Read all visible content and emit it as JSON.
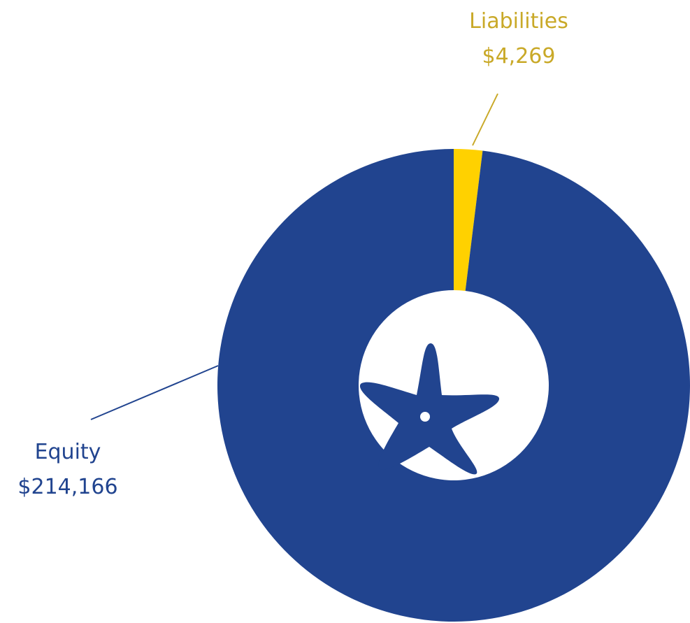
{
  "chart_data": {
    "type": "pie",
    "variant": "donut",
    "slices": [
      {
        "label": "Liabilities",
        "value": 4269,
        "value_label": "$4,269",
        "color": "#FFD100"
      },
      {
        "label": "Equity",
        "value": 214166,
        "value_label": "$214,166",
        "color": "#21448F"
      }
    ],
    "legend": "none",
    "center_icon": "starfish-icon",
    "colors": {
      "liabilities_text": "#C9A928",
      "equity_text": "#21448F",
      "leader_line_liabilities": "#C9A928",
      "leader_line_equity": "#21448F"
    }
  }
}
